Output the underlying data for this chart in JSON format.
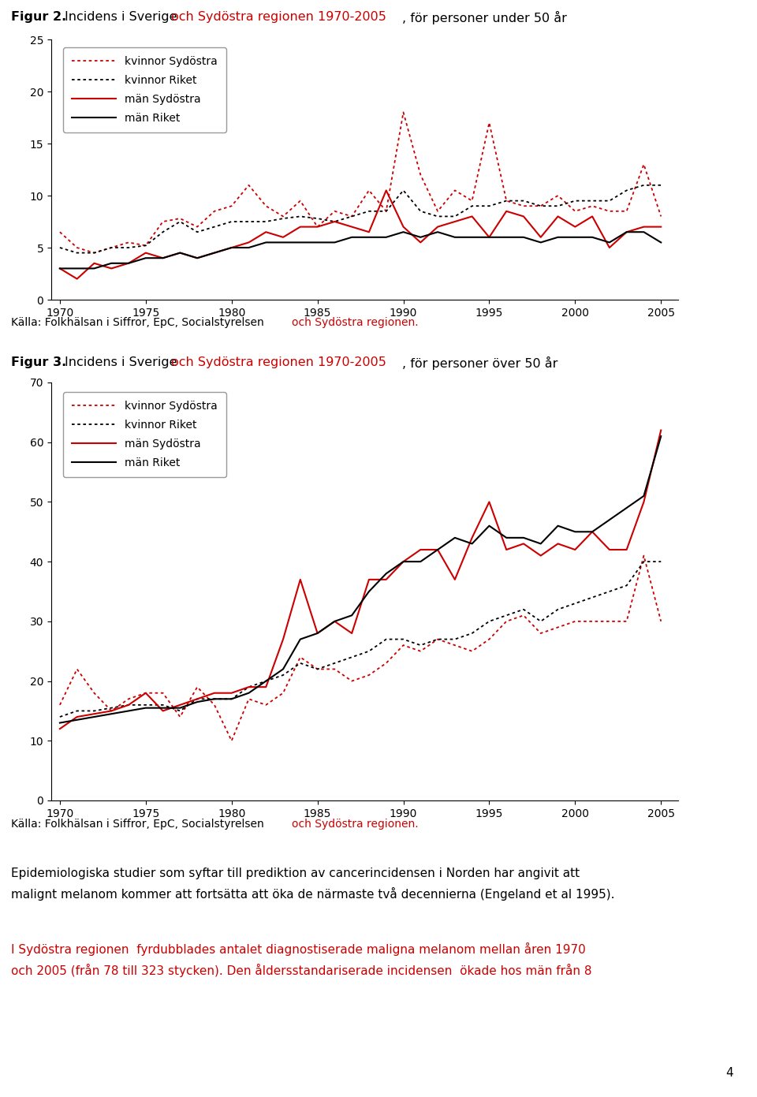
{
  "years": [
    1970,
    1971,
    1972,
    1973,
    1974,
    1975,
    1976,
    1977,
    1978,
    1979,
    1980,
    1981,
    1982,
    1983,
    1984,
    1985,
    1986,
    1987,
    1988,
    1989,
    1990,
    1991,
    1992,
    1993,
    1994,
    1995,
    1996,
    1997,
    1998,
    1999,
    2000,
    2001,
    2002,
    2003,
    2004,
    2005
  ],
  "fig2_kvinna_sydostra": [
    6.5,
    5.0,
    4.5,
    5.0,
    5.5,
    5.2,
    7.5,
    7.8,
    7.0,
    8.5,
    9.0,
    11.0,
    9.0,
    8.0,
    9.5,
    7.0,
    8.5,
    8.0,
    10.5,
    8.5,
    18.0,
    12.0,
    8.5,
    10.5,
    9.5,
    17.0,
    9.5,
    9.0,
    9.0,
    10.0,
    8.5,
    9.0,
    8.5,
    8.5,
    13.0,
    8.0
  ],
  "fig2_kvinna_riket": [
    5.0,
    4.5,
    4.5,
    5.0,
    5.0,
    5.2,
    6.5,
    7.5,
    6.5,
    7.0,
    7.5,
    7.5,
    7.5,
    7.8,
    8.0,
    7.8,
    7.5,
    8.0,
    8.5,
    8.5,
    10.5,
    8.5,
    8.0,
    8.0,
    9.0,
    9.0,
    9.5,
    9.5,
    9.0,
    9.0,
    9.5,
    9.5,
    9.5,
    10.5,
    11.0,
    11.0
  ],
  "fig2_man_sydostra": [
    3.0,
    2.0,
    3.5,
    3.0,
    3.5,
    4.5,
    4.0,
    4.5,
    4.0,
    4.5,
    5.0,
    5.5,
    6.5,
    6.0,
    7.0,
    7.0,
    7.5,
    7.0,
    6.5,
    10.5,
    7.0,
    5.5,
    7.0,
    7.5,
    8.0,
    6.0,
    8.5,
    8.0,
    6.0,
    8.0,
    7.0,
    8.0,
    5.0,
    6.5,
    7.0,
    7.0
  ],
  "fig2_man_riket": [
    3.0,
    3.0,
    3.0,
    3.5,
    3.5,
    4.0,
    4.0,
    4.5,
    4.0,
    4.5,
    5.0,
    5.0,
    5.5,
    5.5,
    5.5,
    5.5,
    5.5,
    6.0,
    6.0,
    6.0,
    6.5,
    6.0,
    6.5,
    6.0,
    6.0,
    6.0,
    6.0,
    6.0,
    5.5,
    6.0,
    6.0,
    6.0,
    5.5,
    6.5,
    6.5,
    5.5
  ],
  "fig3_kvinna_sydostra": [
    16.0,
    22.0,
    18.0,
    15.0,
    17.0,
    18.0,
    18.0,
    14.0,
    19.0,
    16.0,
    10.0,
    17.0,
    16.0,
    18.0,
    24.0,
    22.0,
    22.0,
    20.0,
    21.0,
    23.0,
    26.0,
    25.0,
    27.0,
    26.0,
    25.0,
    27.0,
    30.0,
    31.0,
    28.0,
    29.0,
    30.0,
    30.0,
    30.0,
    30.0,
    41.0,
    30.0
  ],
  "fig3_kvinna_riket": [
    14.0,
    15.0,
    15.0,
    15.5,
    16.0,
    16.0,
    16.0,
    15.0,
    17.0,
    17.0,
    17.0,
    19.0,
    20.0,
    21.0,
    23.0,
    22.0,
    23.0,
    24.0,
    25.0,
    27.0,
    27.0,
    26.0,
    27.0,
    27.0,
    28.0,
    30.0,
    31.0,
    32.0,
    30.0,
    32.0,
    33.0,
    34.0,
    35.0,
    36.0,
    40.0,
    40.0
  ],
  "fig3_man_sydostra": [
    12.0,
    14.0,
    14.5,
    15.0,
    16.0,
    18.0,
    15.0,
    16.0,
    17.0,
    18.0,
    18.0,
    19.0,
    19.0,
    27.0,
    37.0,
    28.0,
    30.0,
    28.0,
    37.0,
    37.0,
    40.0,
    42.0,
    42.0,
    37.0,
    44.0,
    50.0,
    42.0,
    43.0,
    41.0,
    43.0,
    42.0,
    45.0,
    42.0,
    42.0,
    50.0,
    62.0
  ],
  "fig3_man_riket": [
    13.0,
    13.5,
    14.0,
    14.5,
    15.0,
    15.5,
    15.5,
    15.5,
    16.5,
    17.0,
    17.0,
    18.0,
    20.0,
    22.0,
    27.0,
    28.0,
    30.0,
    31.0,
    35.0,
    38.0,
    40.0,
    40.0,
    42.0,
    44.0,
    43.0,
    46.0,
    44.0,
    44.0,
    43.0,
    46.0,
    45.0,
    45.0,
    47.0,
    49.0,
    51.0,
    61.0
  ],
  "legend_labels": [
    "kvinnor Sydöstra",
    "kvinnor Riket",
    "män Sydöstra",
    "män Riket"
  ],
  "source_black": "Källa: Folkhälsan i Siffror, EpC, Socialstyrelsen ",
  "source_red": "och Sydöstra regionen.",
  "fig2_ylim": [
    0,
    25
  ],
  "fig2_yticks": [
    0,
    5,
    10,
    15,
    20,
    25
  ],
  "fig3_ylim": [
    0,
    70
  ],
  "fig3_yticks": [
    0,
    10,
    20,
    30,
    40,
    50,
    60,
    70
  ],
  "xticks": [
    1970,
    1975,
    1980,
    1985,
    1990,
    1995,
    2000,
    2005
  ],
  "color_red": "#cc0000",
  "color_black": "#000000",
  "para1_line1": "Epidemiologiska studier som syftar till prediktion av cancerincidensen i Norden har angivit att",
  "para1_line2": "malignt melanom kommer att fortsätta att öka de närmaste två decennierna (Engeland et al 1995).",
  "para2_line1": "I Sydöstra regionen  fyrdubblades antalet diagnostiserade maligna melanom mellan åren 1970",
  "para2_line2": "och 2005 (från 78 till 323 stycken). Den åldersstandariserade incidensen  ökade hos män från 8",
  "page_number": "4"
}
